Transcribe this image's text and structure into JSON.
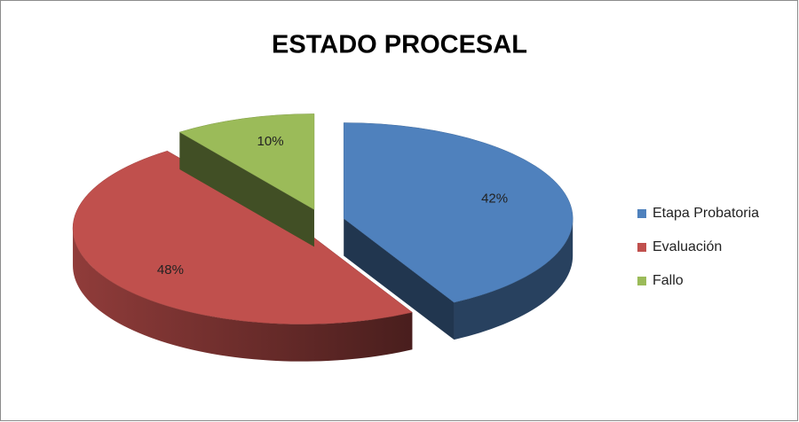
{
  "chart_data": {
    "type": "pie",
    "title": "ESTADO PROCESAL",
    "categories": [
      "Etapa Probatoria",
      "Evaluación",
      "Fallo"
    ],
    "values": [
      42,
      48,
      10
    ],
    "value_labels": [
      "42%",
      "48%",
      "10%"
    ],
    "colors": [
      "#4f81bd",
      "#c0504d",
      "#9bbb59"
    ],
    "legend": "right"
  }
}
